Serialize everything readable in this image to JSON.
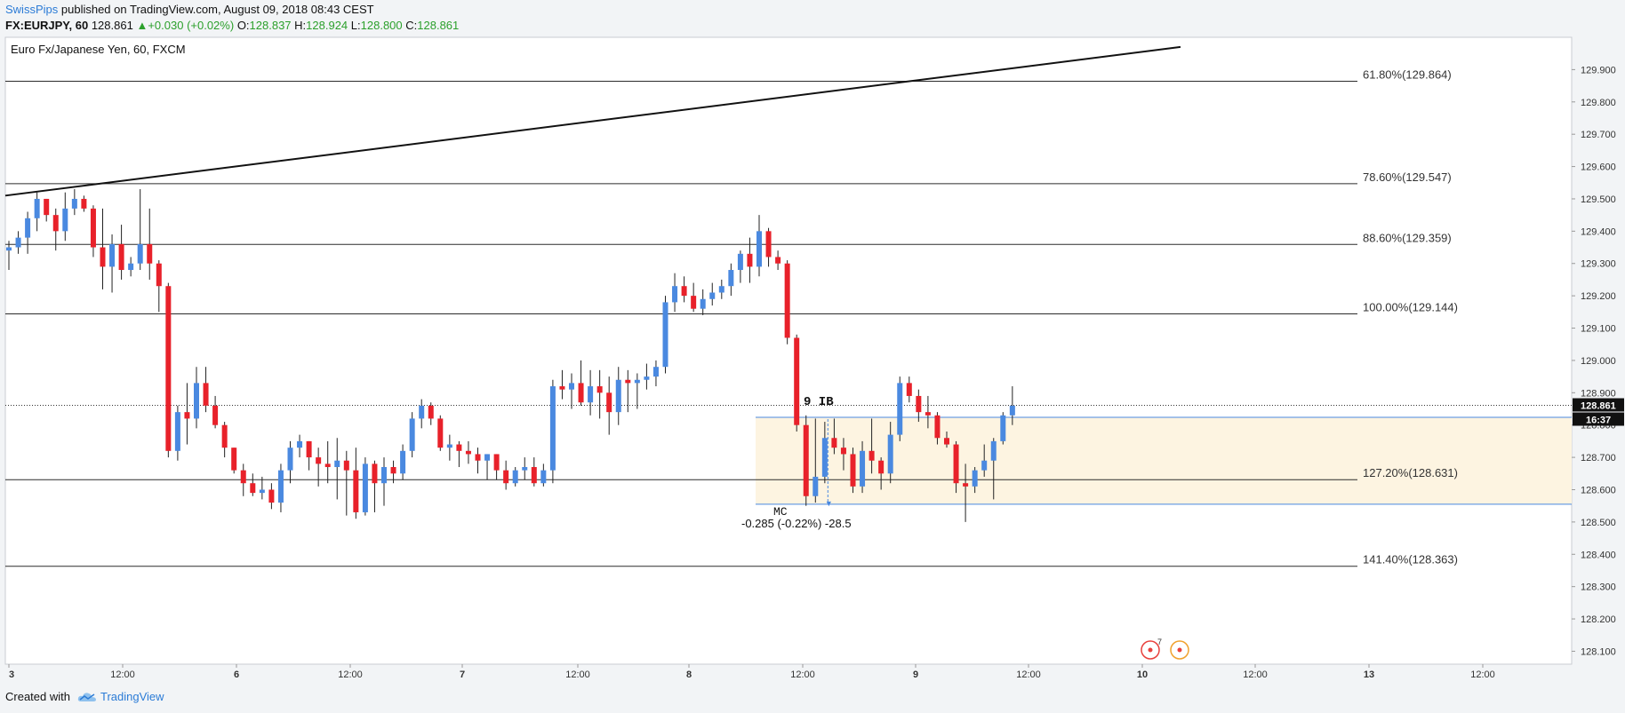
{
  "header": {
    "author": "SwissPips",
    "published": "published on TradingView.com, August 09, 2018 08:43 CEST",
    "symbol": "FX:EURJPY, 60",
    "last": "128.861",
    "change": "+0.030 (+0.02%)",
    "open_label": "O:",
    "open": "128.837",
    "high_label": "H:",
    "high": "128.924",
    "low_label": "L:",
    "low": "128.800",
    "close_label": "C:",
    "close": "128.861"
  },
  "footer": {
    "created_with": "Created with",
    "brand": "TradingView"
  },
  "chart_data": {
    "type": "candlestick",
    "title": "Euro Fx/Japanese Yen, 60, FXCM",
    "y_range": [
      128.06,
      130.0
    ],
    "x_tick_labels": [
      "3",
      "12:00",
      "6",
      "12:00",
      "7",
      "12:00",
      "8",
      "12:00",
      "9",
      "12:00",
      "10",
      "12:00",
      "13",
      "12:00"
    ],
    "y_tick_labels": [
      "129.900",
      "129.800",
      "129.700",
      "129.600",
      "129.500",
      "129.400",
      "129.300",
      "129.200",
      "129.100",
      "129.000",
      "128.900",
      "128.800",
      "128.700",
      "128.600",
      "128.500",
      "128.400",
      "128.300",
      "128.200",
      "128.100"
    ],
    "current_price_label": "128.861",
    "countdown_label": "16:37",
    "colors": {
      "up": "#4a89e0",
      "down": "#e8212a",
      "zone": "#fdf4e1",
      "zone_line": "#4a89e0"
    },
    "fib_levels": [
      {
        "label": "61.80%(129.864)",
        "value": 129.864
      },
      {
        "label": "78.60%(129.547)",
        "value": 129.547
      },
      {
        "label": "88.60%(129.359)",
        "value": 129.359
      },
      {
        "label": "100.00%(129.144)",
        "value": 129.144
      },
      {
        "label": "127.20%(128.631)",
        "value": 128.631
      },
      {
        "label": "141.40%(128.363)",
        "value": 128.363
      }
    ],
    "trendline": {
      "from": 129.51,
      "to": 129.97
    },
    "zone": {
      "top": 128.824,
      "bottom": 128.555
    },
    "annotations": {
      "ib": "9 IB",
      "mc": "MC",
      "measure": "-0.285 (-0.22%) -28.5"
    },
    "event_badge": "7",
    "candles": [
      [
        129.34,
        129.37,
        129.28,
        129.35
      ],
      [
        129.35,
        129.4,
        129.33,
        129.38
      ],
      [
        129.38,
        129.46,
        129.33,
        129.44
      ],
      [
        129.44,
        129.52,
        129.4,
        129.5
      ],
      [
        129.5,
        129.5,
        129.43,
        129.45
      ],
      [
        129.45,
        129.47,
        129.34,
        129.4
      ],
      [
        129.4,
        129.52,
        129.37,
        129.47
      ],
      [
        129.47,
        129.53,
        129.45,
        129.5
      ],
      [
        129.5,
        129.51,
        129.46,
        129.47
      ],
      [
        129.47,
        129.48,
        129.32,
        129.35
      ],
      [
        129.35,
        129.47,
        129.22,
        129.29
      ],
      [
        129.29,
        129.39,
        129.21,
        129.36
      ],
      [
        129.36,
        129.42,
        129.25,
        129.28
      ],
      [
        129.28,
        129.32,
        129.26,
        129.3
      ],
      [
        129.3,
        129.53,
        129.28,
        129.36
      ],
      [
        129.36,
        129.47,
        129.25,
        129.3
      ],
      [
        129.3,
        129.31,
        129.15,
        129.23
      ],
      [
        129.23,
        129.24,
        128.7,
        128.72
      ],
      [
        128.72,
        128.86,
        128.69,
        128.84
      ],
      [
        128.84,
        128.93,
        128.74,
        128.82
      ],
      [
        128.82,
        128.98,
        128.79,
        128.93
      ],
      [
        128.93,
        128.98,
        128.84,
        128.86
      ],
      [
        128.86,
        128.89,
        128.79,
        128.8
      ],
      [
        128.8,
        128.81,
        128.7,
        128.73
      ],
      [
        128.73,
        128.73,
        128.65,
        128.66
      ],
      [
        128.66,
        128.68,
        128.58,
        128.62
      ],
      [
        128.62,
        128.65,
        128.58,
        128.59
      ],
      [
        128.59,
        128.64,
        128.57,
        128.6
      ],
      [
        128.6,
        128.62,
        128.54,
        128.56
      ],
      [
        128.56,
        128.68,
        128.53,
        128.66
      ],
      [
        128.66,
        128.75,
        128.62,
        128.73
      ],
      [
        128.73,
        128.77,
        128.7,
        128.75
      ],
      [
        128.75,
        128.75,
        128.66,
        128.7
      ],
      [
        128.7,
        128.73,
        128.61,
        128.68
      ],
      [
        128.68,
        128.75,
        128.62,
        128.67
      ],
      [
        128.67,
        128.76,
        128.57,
        128.69
      ],
      [
        128.69,
        128.72,
        128.52,
        128.66
      ],
      [
        128.66,
        128.73,
        128.51,
        128.53
      ],
      [
        128.53,
        128.7,
        128.52,
        128.68
      ],
      [
        128.68,
        128.69,
        128.53,
        128.62
      ],
      [
        128.62,
        128.7,
        128.55,
        128.67
      ],
      [
        128.67,
        128.69,
        128.62,
        128.65
      ],
      [
        128.65,
        128.74,
        128.63,
        128.72
      ],
      [
        128.72,
        128.84,
        128.7,
        128.82
      ],
      [
        128.82,
        128.88,
        128.79,
        128.86
      ],
      [
        128.86,
        128.87,
        128.8,
        128.82
      ],
      [
        128.82,
        128.83,
        128.72,
        128.73
      ],
      [
        128.73,
        128.77,
        128.69,
        128.74
      ],
      [
        128.74,
        128.75,
        128.67,
        128.72
      ],
      [
        128.72,
        128.75,
        128.68,
        128.71
      ],
      [
        128.71,
        128.73,
        128.65,
        128.69
      ],
      [
        128.69,
        128.71,
        128.63,
        128.71
      ],
      [
        128.71,
        128.71,
        128.63,
        128.66
      ],
      [
        128.66,
        128.69,
        128.6,
        128.62
      ],
      [
        128.62,
        128.67,
        128.61,
        128.66
      ],
      [
        128.66,
        128.7,
        128.63,
        128.67
      ],
      [
        128.67,
        128.7,
        128.61,
        128.62
      ],
      [
        128.62,
        128.68,
        128.61,
        128.66
      ],
      [
        128.66,
        128.94,
        128.62,
        128.92
      ],
      [
        128.92,
        128.97,
        128.88,
        128.91
      ],
      [
        128.91,
        128.96,
        128.85,
        128.93
      ],
      [
        128.93,
        129.0,
        128.86,
        128.87
      ],
      [
        128.87,
        128.97,
        128.83,
        128.92
      ],
      [
        128.92,
        128.97,
        128.82,
        128.9
      ],
      [
        128.9,
        128.95,
        128.77,
        128.84
      ],
      [
        128.84,
        128.98,
        128.8,
        128.94
      ],
      [
        128.94,
        128.97,
        128.84,
        128.93
      ],
      [
        128.93,
        128.96,
        128.85,
        128.94
      ],
      [
        128.94,
        128.99,
        128.91,
        128.95
      ],
      [
        128.95,
        129.0,
        128.92,
        128.98
      ],
      [
        128.98,
        129.2,
        128.96,
        129.18
      ],
      [
        129.18,
        129.27,
        129.15,
        129.23
      ],
      [
        129.23,
        129.26,
        129.18,
        129.2
      ],
      [
        129.2,
        129.24,
        129.15,
        129.16
      ],
      [
        129.16,
        129.22,
        129.14,
        129.19
      ],
      [
        129.19,
        129.24,
        129.17,
        129.21
      ],
      [
        129.21,
        129.25,
        129.19,
        129.23
      ],
      [
        129.23,
        129.3,
        129.2,
        129.28
      ],
      [
        129.28,
        129.34,
        129.24,
        129.33
      ],
      [
        129.33,
        129.38,
        129.24,
        129.29
      ],
      [
        129.29,
        129.45,
        129.26,
        129.4
      ],
      [
        129.4,
        129.41,
        129.29,
        129.32
      ],
      [
        129.32,
        129.34,
        129.28,
        129.3
      ],
      [
        129.3,
        129.31,
        129.05,
        129.07
      ],
      [
        129.07,
        129.08,
        128.78,
        128.8
      ],
      [
        128.8,
        128.83,
        128.55,
        128.58
      ],
      [
        128.58,
        128.82,
        128.56,
        128.64
      ],
      [
        128.64,
        128.81,
        128.62,
        128.76
      ],
      [
        128.76,
        128.82,
        128.71,
        128.73
      ],
      [
        128.73,
        128.76,
        128.66,
        128.71
      ],
      [
        128.71,
        128.73,
        128.59,
        128.61
      ],
      [
        128.61,
        128.75,
        128.59,
        128.72
      ],
      [
        128.72,
        128.82,
        128.65,
        128.69
      ],
      [
        128.69,
        128.7,
        128.6,
        128.65
      ],
      [
        128.65,
        128.81,
        128.62,
        128.77
      ],
      [
        128.77,
        128.95,
        128.75,
        128.93
      ],
      [
        128.93,
        128.95,
        128.87,
        128.89
      ],
      [
        128.89,
        128.91,
        128.81,
        128.84
      ],
      [
        128.84,
        128.89,
        128.79,
        128.83
      ],
      [
        128.83,
        128.84,
        128.74,
        128.76
      ],
      [
        128.76,
        128.78,
        128.73,
        128.74
      ],
      [
        128.74,
        128.75,
        128.59,
        128.62
      ],
      [
        128.62,
        128.68,
        128.5,
        128.61
      ],
      [
        128.61,
        128.67,
        128.59,
        128.66
      ],
      [
        128.66,
        128.74,
        128.64,
        128.69
      ],
      [
        128.69,
        128.76,
        128.57,
        128.75
      ],
      [
        128.75,
        128.84,
        128.74,
        128.83
      ],
      [
        128.83,
        128.92,
        128.8,
        128.86
      ]
    ]
  }
}
